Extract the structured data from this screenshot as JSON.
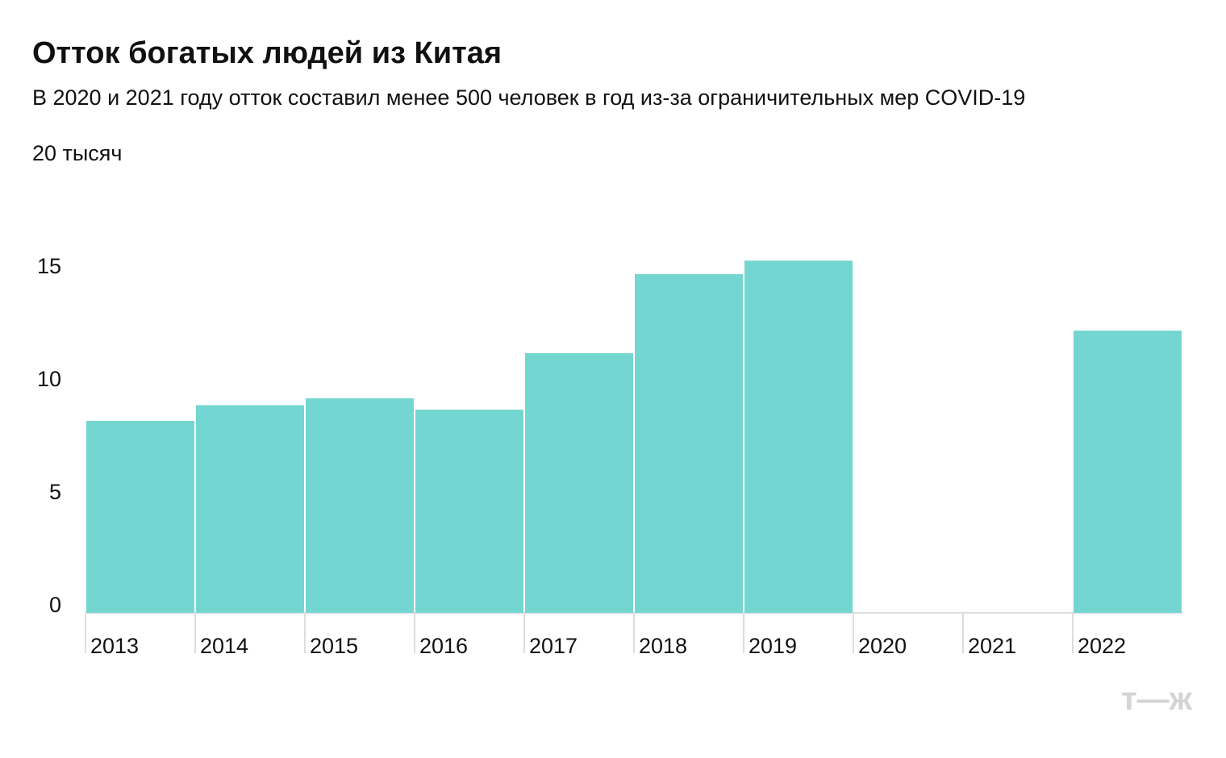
{
  "chart_data": {
    "type": "bar",
    "title": "Отток богатых людей из Китая",
    "subtitle": "В 2020 и 2021 году отток составил менее 500 человек в год из-за ограничительных мер COVID-19",
    "categories": [
      "2013",
      "2014",
      "2015",
      "2016",
      "2017",
      "2018",
      "2019",
      "2020",
      "2021",
      "2022"
    ],
    "values": [
      8.5,
      9.2,
      9.5,
      9.0,
      11.5,
      15.0,
      15.6,
      0,
      0,
      12.5
    ],
    "color": "#74d6d1",
    "ylim": [
      0,
      20
    ],
    "yticks": [
      0,
      5,
      10,
      15,
      {
        "value": 20,
        "label": "20 тысяч"
      }
    ],
    "grid": false,
    "logo": "т—ж"
  }
}
